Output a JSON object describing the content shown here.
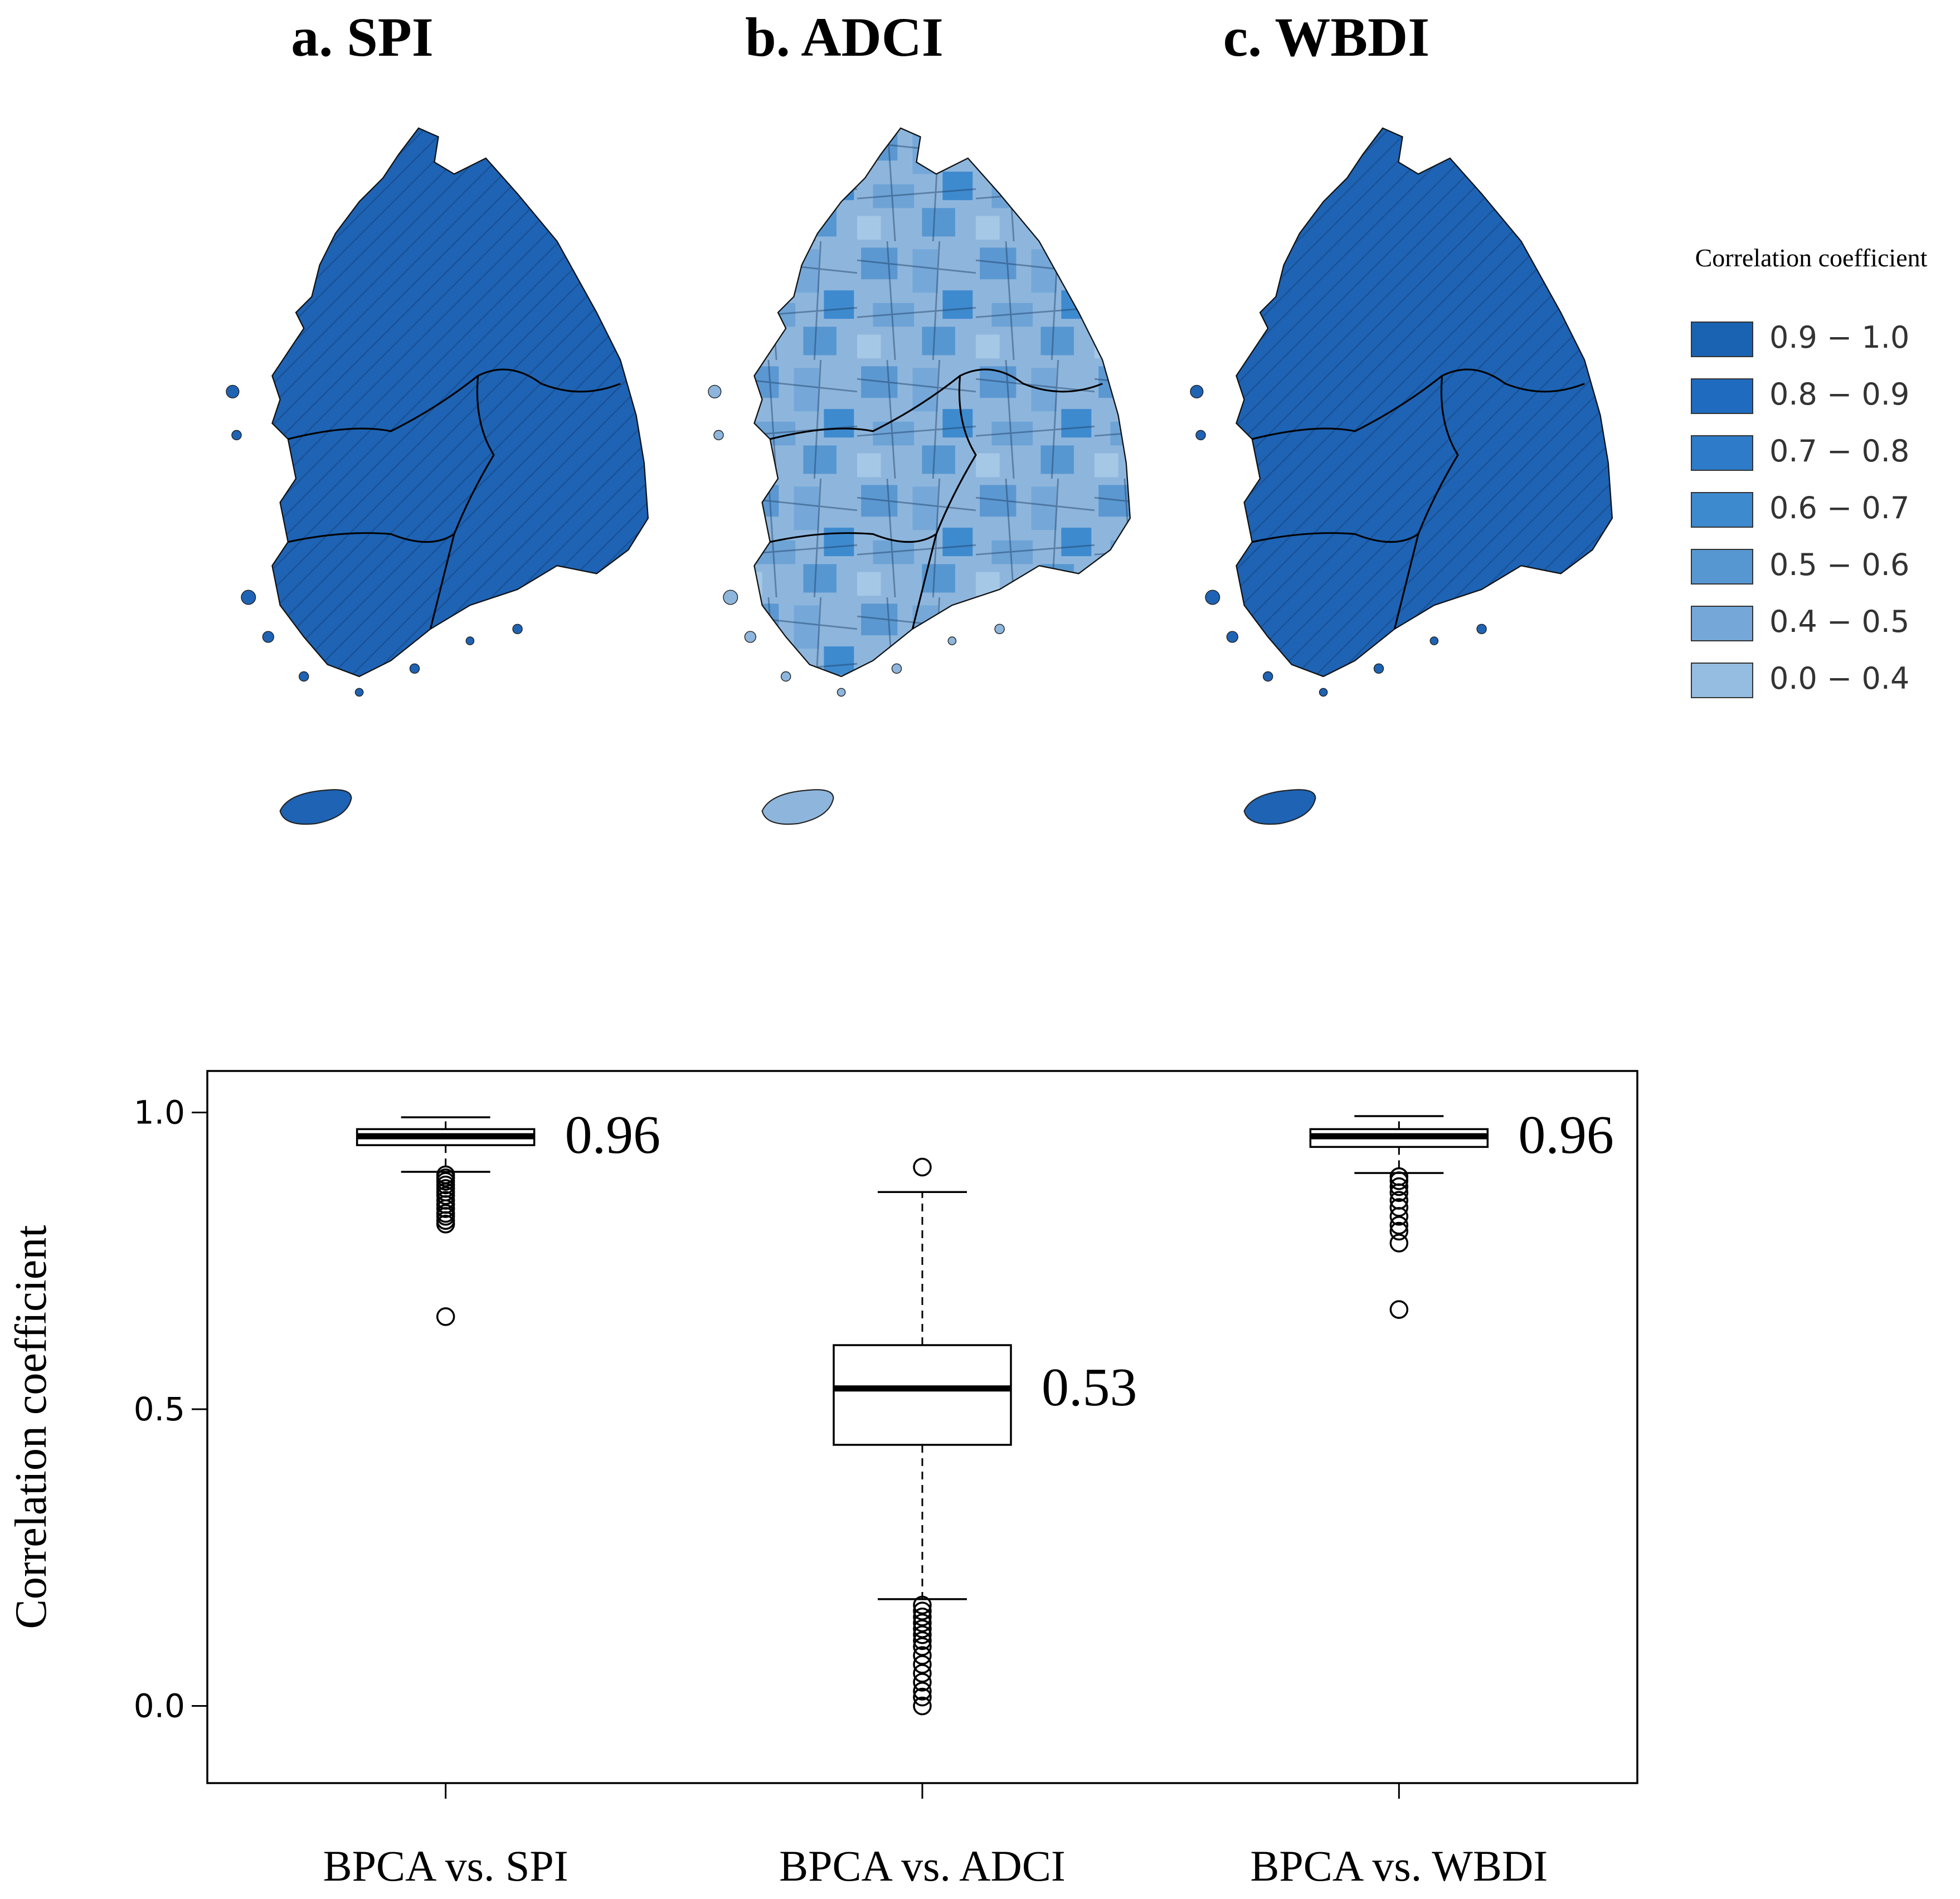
{
  "maps": {
    "panels": [
      {
        "title": "a. SPI",
        "fill": "#1e63b4",
        "pattern": "uniform"
      },
      {
        "title": "b. ADCI",
        "fill": "#8eb6dd",
        "pattern": "mixed"
      },
      {
        "title": "c. WBDI",
        "fill": "#1e63b4",
        "pattern": "uniform"
      }
    ],
    "legend": {
      "title": "Correlation coefficient",
      "items": [
        {
          "label": "0.9 − 1.0",
          "color": "#1a63b3"
        },
        {
          "label": "0.8 − 0.9",
          "color": "#1f6bc0"
        },
        {
          "label": "0.7 − 0.8",
          "color": "#2d7bc9"
        },
        {
          "label": "0.6 − 0.7",
          "color": "#3e8acf"
        },
        {
          "label": "0.5 − 0.6",
          "color": "#5797d1"
        },
        {
          "label": "0.4 − 0.5",
          "color": "#75a8d8"
        },
        {
          "label": "0.0 − 0.4",
          "color": "#95bde2"
        }
      ]
    }
  },
  "chart_data": {
    "type": "boxplot",
    "ylabel": "Correlation coefficient",
    "ylim": [
      -0.13,
      1.07
    ],
    "yticks": [
      "0.0",
      "0.5",
      "1.0"
    ],
    "categories": [
      "BPCA vs. SPI",
      "BPCA vs. ADCI",
      "BPCA vs. WBDI"
    ],
    "boxes": [
      {
        "category": "BPCA vs. SPI",
        "whisker_low": 0.9,
        "q1": 0.945,
        "median": 0.96,
        "q3": 0.972,
        "whisker_high": 0.992,
        "outliers": [
          0.656,
          0.812,
          0.818,
          0.825,
          0.83,
          0.838,
          0.845,
          0.852,
          0.86,
          0.866,
          0.872,
          0.878,
          0.884,
          0.89,
          0.895
        ],
        "median_label": "0.96"
      },
      {
        "category": "BPCA vs. ADCI",
        "whisker_low": 0.18,
        "q1": 0.44,
        "median": 0.535,
        "q3": 0.608,
        "whisker_high": 0.866,
        "outliers": [
          0.908,
          0.0,
          0.015,
          0.025,
          0.04,
          0.055,
          0.07,
          0.085,
          0.1,
          0.11,
          0.12,
          0.13,
          0.14,
          0.15,
          0.16,
          0.17
        ],
        "median_label": "0.53"
      },
      {
        "category": "BPCA vs. WBDI",
        "whisker_low": 0.898,
        "q1": 0.942,
        "median": 0.96,
        "q3": 0.972,
        "whisker_high": 0.994,
        "outliers": [
          0.668,
          0.78,
          0.8,
          0.81,
          0.825,
          0.84,
          0.852,
          0.865,
          0.875,
          0.885,
          0.892
        ],
        "median_label": "0.96"
      }
    ]
  }
}
